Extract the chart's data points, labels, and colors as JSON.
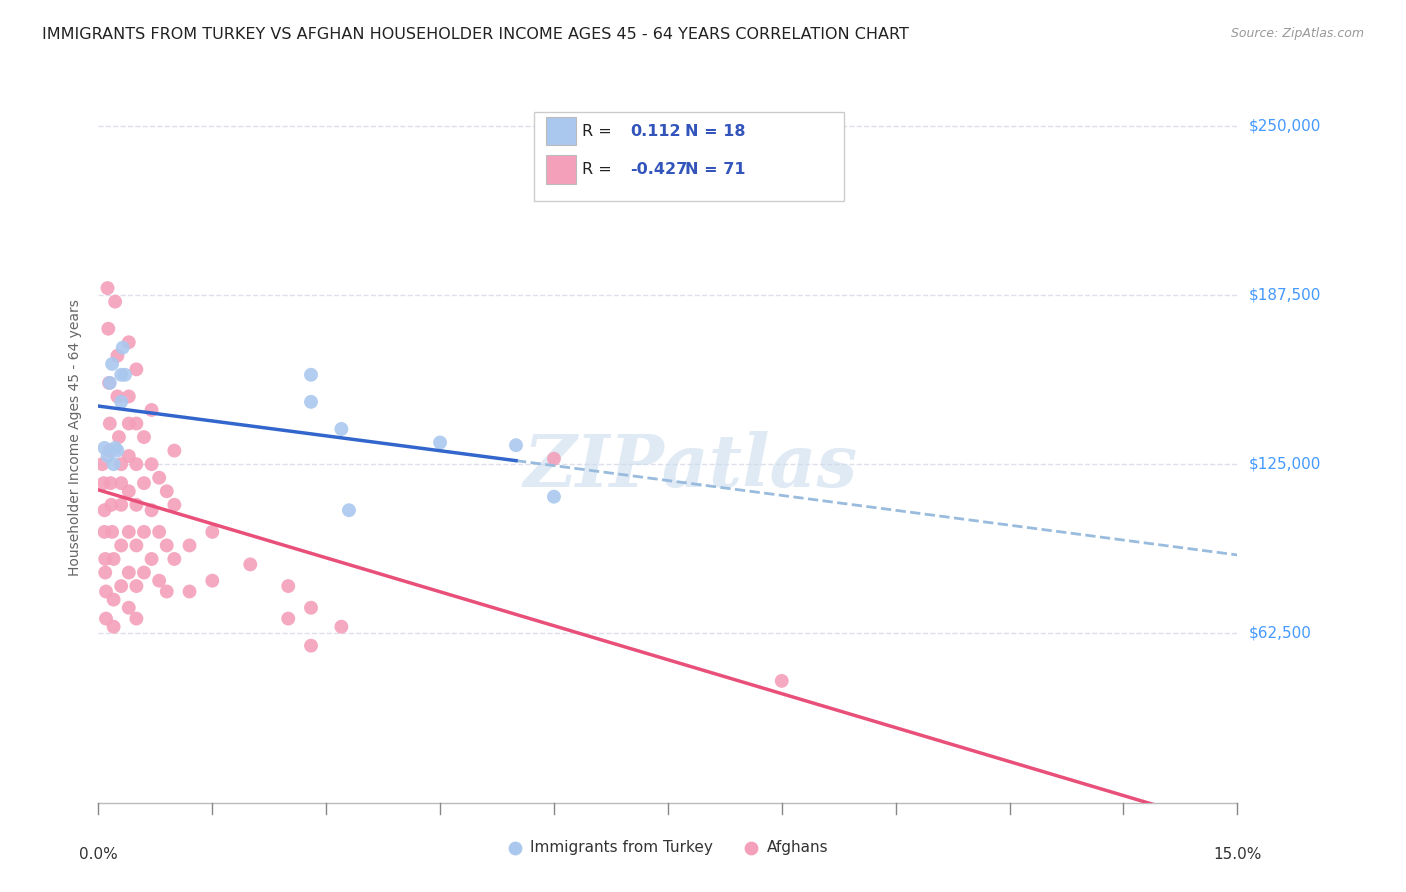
{
  "title": "IMMIGRANTS FROM TURKEY VS AFGHAN HOUSEHOLDER INCOME AGES 45 - 64 YEARS CORRELATION CHART",
  "source": "Source: ZipAtlas.com",
  "ylabel": "Householder Income Ages 45 - 64 years",
  "ytick_labels": [
    "$62,500",
    "$125,000",
    "$187,500",
    "$250,000"
  ],
  "ytick_values": [
    62500,
    125000,
    187500,
    250000
  ],
  "ymin": 0,
  "ymax": 270000,
  "xmin": 0.0,
  "xmax": 0.15,
  "turkey_color": "#aac8ee",
  "afghan_color": "#f4a0bb",
  "turkey_line_solid_color": "#3366cc",
  "turkey_line_dash_color": "#99bbdd",
  "afghan_line_color": "#e8507a",
  "watermark": "ZIPatlas",
  "turkey_points": [
    [
      0.0008,
      131000
    ],
    [
      0.0012,
      128000
    ],
    [
      0.0015,
      155000
    ],
    [
      0.0018,
      162000
    ],
    [
      0.002,
      125000
    ],
    [
      0.0022,
      131000
    ],
    [
      0.0025,
      130000
    ],
    [
      0.003,
      148000
    ],
    [
      0.003,
      158000
    ],
    [
      0.0032,
      168000
    ],
    [
      0.0035,
      158000
    ],
    [
      0.028,
      158000
    ],
    [
      0.028,
      148000
    ],
    [
      0.032,
      138000
    ],
    [
      0.033,
      108000
    ],
    [
      0.045,
      133000
    ],
    [
      0.055,
      132000
    ],
    [
      0.06,
      113000
    ]
  ],
  "afghan_points": [
    [
      0.0005,
      125000
    ],
    [
      0.0007,
      118000
    ],
    [
      0.0008,
      108000
    ],
    [
      0.0008,
      100000
    ],
    [
      0.0009,
      90000
    ],
    [
      0.0009,
      85000
    ],
    [
      0.001,
      78000
    ],
    [
      0.001,
      68000
    ],
    [
      0.0012,
      190000
    ],
    [
      0.0013,
      175000
    ],
    [
      0.0014,
      155000
    ],
    [
      0.0015,
      140000
    ],
    [
      0.0015,
      130000
    ],
    [
      0.0016,
      118000
    ],
    [
      0.0017,
      110000
    ],
    [
      0.0018,
      100000
    ],
    [
      0.002,
      90000
    ],
    [
      0.002,
      75000
    ],
    [
      0.002,
      65000
    ],
    [
      0.0022,
      185000
    ],
    [
      0.0025,
      165000
    ],
    [
      0.0025,
      150000
    ],
    [
      0.0027,
      135000
    ],
    [
      0.003,
      125000
    ],
    [
      0.003,
      118000
    ],
    [
      0.003,
      110000
    ],
    [
      0.003,
      95000
    ],
    [
      0.003,
      80000
    ],
    [
      0.004,
      170000
    ],
    [
      0.004,
      150000
    ],
    [
      0.004,
      140000
    ],
    [
      0.004,
      128000
    ],
    [
      0.004,
      115000
    ],
    [
      0.004,
      100000
    ],
    [
      0.004,
      85000
    ],
    [
      0.004,
      72000
    ],
    [
      0.005,
      160000
    ],
    [
      0.005,
      140000
    ],
    [
      0.005,
      125000
    ],
    [
      0.005,
      110000
    ],
    [
      0.005,
      95000
    ],
    [
      0.005,
      80000
    ],
    [
      0.005,
      68000
    ],
    [
      0.006,
      135000
    ],
    [
      0.006,
      118000
    ],
    [
      0.006,
      100000
    ],
    [
      0.006,
      85000
    ],
    [
      0.007,
      145000
    ],
    [
      0.007,
      125000
    ],
    [
      0.007,
      108000
    ],
    [
      0.007,
      90000
    ],
    [
      0.008,
      120000
    ],
    [
      0.008,
      100000
    ],
    [
      0.008,
      82000
    ],
    [
      0.009,
      115000
    ],
    [
      0.009,
      95000
    ],
    [
      0.009,
      78000
    ],
    [
      0.01,
      130000
    ],
    [
      0.01,
      110000
    ],
    [
      0.01,
      90000
    ],
    [
      0.012,
      95000
    ],
    [
      0.012,
      78000
    ],
    [
      0.015,
      100000
    ],
    [
      0.015,
      82000
    ],
    [
      0.02,
      88000
    ],
    [
      0.025,
      80000
    ],
    [
      0.025,
      68000
    ],
    [
      0.028,
      72000
    ],
    [
      0.028,
      58000
    ],
    [
      0.032,
      65000
    ],
    [
      0.06,
      127000
    ],
    [
      0.09,
      45000
    ]
  ],
  "background_color": "#ffffff",
  "grid_color": "#dde0ea",
  "title_fontsize": 11.5,
  "tick_label_color_right": "#4499ff",
  "legend_r_color": "#333333",
  "legend_num_color": "#3355bb",
  "legend_n_color": "#3355bb"
}
